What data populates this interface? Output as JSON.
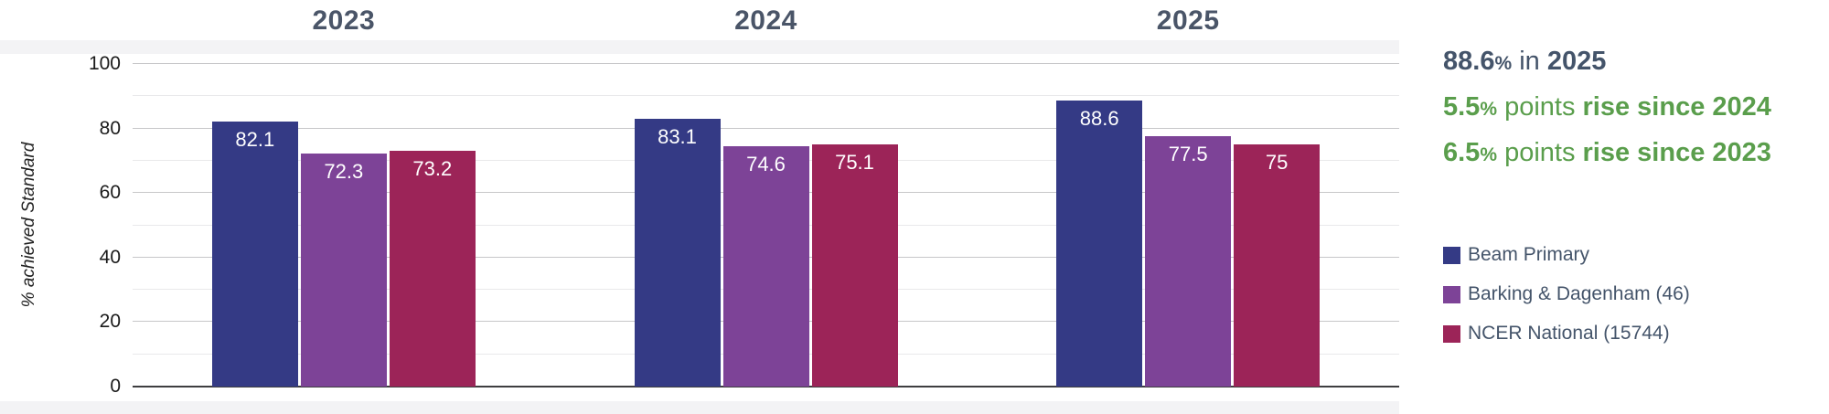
{
  "chart_data": {
    "type": "bar",
    "categories": [
      "2023",
      "2024",
      "2025"
    ],
    "series": [
      {
        "name": "Beam Primary",
        "color": "#343a85",
        "values": [
          82.1,
          83.1,
          88.6
        ],
        "labels": [
          "82.1",
          "83.1",
          "88.6"
        ]
      },
      {
        "name": "Barking & Dagenham (46)",
        "color": "#7d4397",
        "values": [
          72.3,
          74.6,
          77.5
        ],
        "labels": [
          "72.3",
          "74.6",
          "77.5"
        ]
      },
      {
        "name": "NCER National (15744)",
        "color": "#9c2458",
        "values": [
          73.2,
          75.1,
          75
        ],
        "labels": [
          "73.2",
          "75.1",
          "75"
        ]
      }
    ],
    "ylabel": "% achieved Standard",
    "ylim": [
      0,
      100
    ],
    "yticks": [
      0,
      20,
      40,
      60,
      80,
      100
    ],
    "gridlines": {
      "minor_every": 10,
      "major_every": 20
    },
    "legend_position": "right"
  },
  "annotations": {
    "line1": {
      "num": "88.6",
      "pct": "%",
      "mid": " in ",
      "bold": "2025",
      "color": "#44546a"
    },
    "line2": {
      "num": "5.5",
      "pct": "%",
      "mid": " points ",
      "bold": "rise since 2024",
      "color": "#5a9e4c"
    },
    "line3": {
      "num": "6.5",
      "pct": "%",
      "mid": " points ",
      "bold": "rise since 2023",
      "color": "#5a9e4c"
    }
  },
  "colors": {
    "category_label": "#4a5568",
    "tick_label": "#1a1a1a",
    "gridline_major": "#c7c7c9",
    "gridline_minor": "#e9e9eb",
    "axis_line": "#3e3e40",
    "band": "#f3f3f5",
    "legend_text": "#44546a",
    "bar_value_label": "#ffffff"
  }
}
